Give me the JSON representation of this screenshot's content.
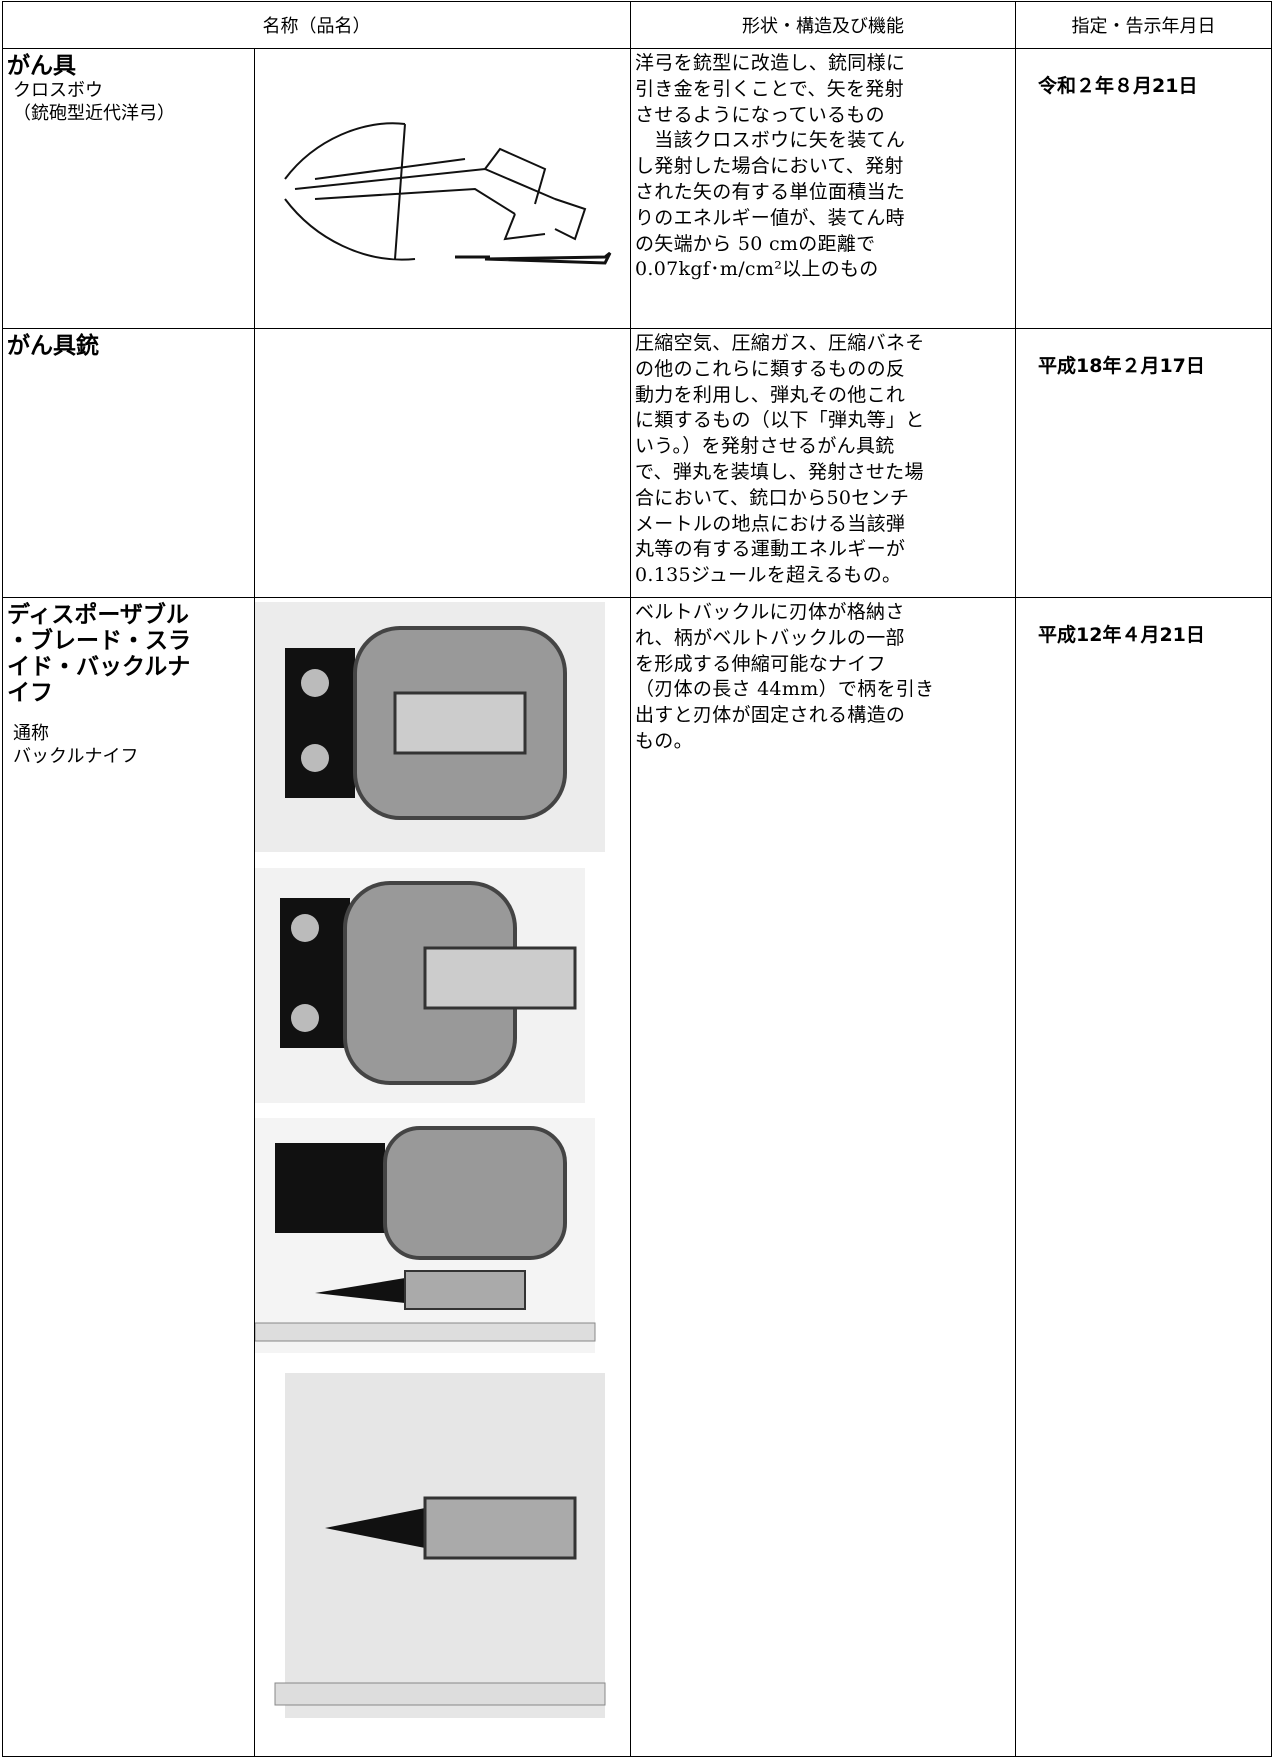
{
  "header": [
    "名称（品名）",
    "形状・構造及び機能",
    "指定・告示年月日"
  ],
  "rows": [
    {
      "name": [
        "がん具"
      ],
      "subname": [
        "クロスボウ",
        "（銃砲型近代洋弓）"
      ],
      "description": [
        "洋弓を銃型に改造し、銃同様に",
        "引き金を引くことで、矢を発射",
        "させるようになっているもの",
        "　当該クロスボウに矢を装てん",
        "し発射した場合において、発射",
        "された矢の有する単位面積当た",
        "りのエネルギー値が、装てん時",
        "の矢端から 50 cmの距離で",
        "0.07kgf･m/cm²以上のもの"
      ],
      "date": "令和２年８月21日"
    },
    {
      "name": [
        "がん具銃"
      ],
      "subname": [],
      "description": [
        "圧縮空気、圧縮ガス、圧縮バネそ",
        "の他のこれらに類するものの反",
        "動力を利用し、弾丸その他これ",
        "に類するもの（以下「弾丸等」と",
        "いう。）を発射させるがん具銃",
        "で、弾丸を装填し、発射させた場",
        "合において、銃口から50センチ",
        "メートルの地点における当該弾",
        "丸等の有する運動エネルギーが",
        "0.135ジュールを超えるもの。"
      ],
      "date": "平成18年２月17日"
    },
    {
      "name": [
        "ディスポーザブル",
        "・ブレード・スラ",
        "イド・バックルナ",
        "イフ"
      ],
      "subname": [
        "通称",
        "バックルナイフ"
      ],
      "description": [
        "ベルトバックルに刃体が格納さ",
        "れ、柄がベルトバックルの一部",
        "を形成する伸縮可能なナイフ",
        "（刃体の長さ 44mm）で柄を引き",
        "出すと刃体が固定される構造の",
        "もの。"
      ],
      "date": "平成12年４月21日"
    }
  ]
}
